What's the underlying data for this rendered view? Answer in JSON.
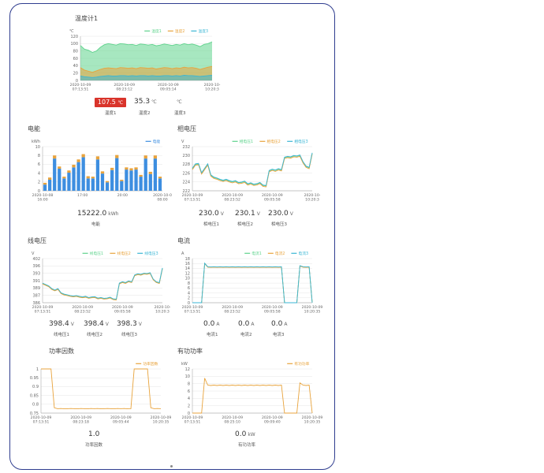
{
  "temperature": {
    "title": "温度计1",
    "unit": "℃",
    "legend": [
      "温度1",
      "温度2",
      "温度3"
    ],
    "readings": [
      {
        "value": "107.5",
        "unit": "℃",
        "label": "温度1",
        "alarm": true
      },
      {
        "value": "35.3",
        "unit": "℃",
        "label": "温度2"
      },
      {
        "value": "",
        "unit": "℃",
        "label": "温度3"
      }
    ]
  },
  "energy": {
    "title": "电能",
    "unit": "kWh",
    "legend": [
      "电能"
    ],
    "reading": {
      "value": "15222.0",
      "unit": "kWh",
      "label": "电能"
    }
  },
  "phase_voltage": {
    "title": "相电压",
    "unit": "V",
    "legend": [
      "相电压1",
      "相电压2",
      "相电压3"
    ],
    "readings": [
      {
        "value": "230.0",
        "unit": "V",
        "label": "相电压1"
      },
      {
        "value": "230.1",
        "unit": "V",
        "label": "相电压2"
      },
      {
        "value": "230.0",
        "unit": "V",
        "label": "相电压3"
      }
    ]
  },
  "line_voltage": {
    "title": "线电压",
    "unit": "V",
    "legend": [
      "线电压1",
      "线电压2",
      "线电压3"
    ],
    "readings": [
      {
        "value": "398.4",
        "unit": "V",
        "label": "线电压1"
      },
      {
        "value": "398.4",
        "unit": "V",
        "label": "线电压2"
      },
      {
        "value": "398.3",
        "unit": "V",
        "label": "线电压3"
      }
    ]
  },
  "current": {
    "title": "电流",
    "unit": "A",
    "legend": [
      "电流1",
      "电流2",
      "电流3"
    ],
    "readings": [
      {
        "value": "0.0",
        "unit": "A",
        "label": "电流1"
      },
      {
        "value": "0.0",
        "unit": "A",
        "label": "电流2"
      },
      {
        "value": "0.0",
        "unit": "A",
        "label": "电流3"
      }
    ]
  },
  "power_factor": {
    "title": "功率因数",
    "unit": "",
    "legend": [
      "功率因数"
    ],
    "reading": {
      "value": "1.0",
      "unit": "",
      "label": "功率因数"
    }
  },
  "active_power": {
    "title": "有功功率",
    "unit": "kW",
    "legend": [
      "有功功率"
    ],
    "reading": {
      "value": "0.0",
      "unit": "kW",
      "label": "有功功率"
    }
  },
  "colors": {
    "green": "#5fd38d",
    "orange": "#e8a33c",
    "cyan": "#3ab6d4",
    "blue": "#3d8ee0",
    "alarm": "#d9342b"
  },
  "chart_data": [
    {
      "type": "area",
      "id": "temperature",
      "title": "温度计1",
      "ylabel": "℃",
      "ylim": [
        0,
        120
      ],
      "yticks": [
        "0",
        "20",
        "40",
        "60",
        "80",
        "100",
        "120"
      ],
      "xticks": [
        "2020-10-09\n07:13:51",
        "2020-10-09\n08:23:12",
        "2020-10-09\n09:05:14",
        "2020-10-\n10:20:3"
      ],
      "legend_position": "top-right",
      "series": [
        {
          "name": "温度1",
          "color": "#5fd38d",
          "values": [
            95,
            85,
            82,
            76,
            80,
            90,
            97,
            100,
            98,
            96,
            100,
            99,
            97,
            98,
            95,
            99,
            98,
            96,
            98,
            94,
            96,
            99,
            97,
            95,
            98,
            96,
            100,
            97,
            99,
            96,
            92,
            98,
            100,
            105
          ]
        },
        {
          "name": "温度2",
          "color": "#e8a33c",
          "values": [
            35,
            28,
            25,
            22,
            26,
            30,
            33,
            34,
            33,
            32,
            35,
            34,
            33,
            34,
            32,
            35,
            34,
            33,
            34,
            31,
            33,
            35,
            34,
            32,
            34,
            33,
            36,
            34,
            35,
            33,
            30,
            33,
            36,
            38
          ]
        },
        {
          "name": "温度3",
          "color": "#3ab6d4",
          "values": [
            12,
            10,
            9,
            8,
            9,
            11,
            12,
            13,
            12,
            12,
            13,
            13,
            12,
            13,
            12,
            13,
            13,
            12,
            13,
            12,
            12,
            13,
            13,
            12,
            13,
            12,
            14,
            13,
            13,
            12,
            11,
            12,
            13,
            14
          ]
        }
      ]
    },
    {
      "type": "bar",
      "id": "energy",
      "title": "电能",
      "ylabel": "kWh",
      "ylim": [
        0,
        10
      ],
      "yticks": [
        "0",
        "2",
        "4",
        "6",
        "8",
        "10"
      ],
      "xticks": [
        "2020-10-08\n16:00",
        "17:00",
        "20:00",
        "2020-10-0\n08:00"
      ],
      "legend_position": "top-right",
      "series": [
        {
          "name": "电能",
          "color": "#3d8ee0",
          "values": [
            1.4,
            2.5,
            7.3,
            5.0,
            2.8,
            4.1,
            5.3,
            6.5,
            7.6,
            2.8,
            2.8,
            7.1,
            3.9,
            1.9,
            4.7,
            7.4,
            2.2,
            4.8,
            4.6,
            4.8,
            3.2,
            7.3,
            3.8,
            7.3,
            2.8
          ]
        },
        {
          "name": "",
          "color": "#e8a33c",
          "values": [
            0.4,
            0.5,
            0.7,
            0.5,
            0.4,
            0.5,
            0.6,
            0.6,
            0.7,
            0.5,
            0.4,
            0.7,
            0.5,
            0.3,
            0.5,
            0.7,
            0.3,
            0.5,
            0.5,
            0.5,
            0.4,
            0.7,
            0.5,
            0.7,
            0.4
          ]
        }
      ]
    },
    {
      "type": "line",
      "id": "phase_voltage",
      "title": "相电压",
      "ylabel": "V",
      "ylim": [
        222,
        232
      ],
      "yticks": [
        "222",
        "224",
        "226",
        "228",
        "230",
        "232"
      ],
      "xticks": [
        "2020-10-09\n07:13:51",
        "2020-10-09\n08:23:52",
        "2020-10-09\n09:05:58",
        "2020-10-\n10:20:3"
      ],
      "legend_position": "top-right",
      "series": [
        {
          "name": "相电压1",
          "color": "#5fd38d",
          "values": [
            227,
            228,
            228,
            226,
            227,
            228,
            225.5,
            225,
            224.8,
            224.5,
            224.3,
            224.5,
            224.2,
            224,
            224.2,
            223.8,
            223.9,
            224.1,
            223.5,
            223.7,
            223.4,
            223.5,
            223.8,
            223.2,
            223.1,
            226.5,
            226.8,
            226.6,
            226.9,
            226.7,
            229.5,
            229.7,
            229.6,
            229.9,
            229.8,
            230,
            228.5,
            227.5,
            227.2,
            230.5
          ]
        },
        {
          "name": "相电压2",
          "color": "#e8a33c",
          "values": [
            226.8,
            227.8,
            227.9,
            225.8,
            226.8,
            227.8,
            225.3,
            224.8,
            224.6,
            224.3,
            224.1,
            224.3,
            224,
            223.8,
            224,
            223.6,
            223.7,
            223.9,
            223.3,
            223.5,
            223.2,
            223.3,
            223.6,
            223,
            222.9,
            226.3,
            226.6,
            226.4,
            226.7,
            226.5,
            229.3,
            229.5,
            229.4,
            229.7,
            229.6,
            229.8,
            228.3,
            227.3,
            227,
            230.3
          ]
        },
        {
          "name": "相电压3",
          "color": "#3ab6d4",
          "values": [
            227.1,
            228.1,
            228.2,
            226.1,
            227.1,
            228.1,
            225.6,
            225.1,
            224.9,
            224.6,
            224.4,
            224.6,
            224.3,
            224.1,
            224.3,
            223.9,
            224,
            224.2,
            223.6,
            223.8,
            223.5,
            223.6,
            223.9,
            223.3,
            223.2,
            226.6,
            226.9,
            226.7,
            227,
            226.8,
            229.6,
            229.8,
            229.7,
            230,
            229.9,
            230.1,
            228.6,
            227.6,
            227.3,
            230.6
          ]
        }
      ]
    },
    {
      "type": "line",
      "id": "line_voltage",
      "title": "线电压",
      "ylabel": "V",
      "ylim": [
        386,
        402
      ],
      "yticks": [
        "386",
        "387",
        "389",
        "391",
        "393",
        "396",
        "402"
      ],
      "xticks": [
        "2020-10-09\n07:13:51",
        "2020-10-09\n08:23:52",
        "2020-10-09\n09:05:58",
        "2020-10-\n10:20:3"
      ],
      "legend_position": "top-right",
      "series": [
        {
          "name": "线电压1",
          "color": "#5fd38d",
          "values": [
            393,
            392.5,
            392,
            391,
            390.5,
            391,
            389.5,
            389,
            388.8,
            388.5,
            388.3,
            388.5,
            388.2,
            388,
            388.2,
            387.8,
            388,
            388.1,
            387.6,
            387.8,
            387.5,
            387.6,
            387.9,
            387.3,
            387.2,
            393,
            393.5,
            393.2,
            393.8,
            393.5,
            396,
            396.4,
            396.2,
            396.6,
            396.5,
            396.8,
            394.5,
            393.5,
            393.2,
            398.5
          ]
        },
        {
          "name": "线电压2",
          "color": "#e8a33c",
          "values": [
            392.8,
            392.3,
            391.8,
            390.8,
            390.3,
            390.8,
            389.3,
            388.8,
            388.6,
            388.3,
            388.1,
            388.3,
            388,
            387.8,
            388,
            387.6,
            387.8,
            387.9,
            387.4,
            387.6,
            387.3,
            387.4,
            387.7,
            387.1,
            387,
            392.8,
            393.3,
            393,
            393.6,
            393.3,
            395.8,
            396.2,
            396,
            396.4,
            396.3,
            396.6,
            394.3,
            393.3,
            393,
            398.3
          ]
        },
        {
          "name": "线电压3",
          "color": "#3ab6d4",
          "values": [
            393.1,
            392.6,
            392.1,
            391.1,
            390.6,
            391.1,
            389.6,
            389.1,
            388.9,
            388.6,
            388.4,
            388.6,
            388.3,
            388.1,
            388.3,
            387.9,
            388.1,
            388.2,
            387.7,
            387.9,
            387.6,
            387.7,
            388,
            387.4,
            387.3,
            393.1,
            393.6,
            393.3,
            393.9,
            393.6,
            396.1,
            396.5,
            396.3,
            396.7,
            396.6,
            396.9,
            394.6,
            393.6,
            393.3,
            398.6
          ]
        }
      ]
    },
    {
      "type": "line",
      "id": "current",
      "title": "电流",
      "ylabel": "A",
      "ylim": [
        0,
        18
      ],
      "yticks": [
        "0",
        "2",
        "4",
        "6",
        "8",
        "10",
        "12",
        "14",
        "16",
        "18"
      ],
      "xticks": [
        "2020-10-09\n07:13:51",
        "2020-10-09\n08:23:52",
        "2020-10-09\n09:05:58",
        "2020-10-09\n10:20:35"
      ],
      "legend_position": "top-right",
      "series": [
        {
          "name": "电流1",
          "color": "#5fd38d",
          "values": [
            0,
            0,
            0,
            0,
            16,
            14.6,
            14.5,
            14.6,
            14.5,
            14.6,
            14.5,
            14.6,
            14.5,
            14.6,
            14.5,
            14.6,
            14.5,
            14.6,
            14.5,
            14.6,
            14.5,
            14.6,
            14.5,
            14.6,
            14.5,
            14.6,
            14.5,
            14.6,
            14.5,
            14.6,
            0,
            0,
            0,
            0,
            0,
            15,
            14.6,
            14.5,
            14.6,
            0
          ]
        },
        {
          "name": "电流2",
          "color": "#e8a33c",
          "values": [
            0,
            0,
            0,
            0,
            15.9,
            14.5,
            14.4,
            14.5,
            14.4,
            14.5,
            14.4,
            14.5,
            14.4,
            14.5,
            14.4,
            14.5,
            14.4,
            14.5,
            14.4,
            14.5,
            14.4,
            14.5,
            14.4,
            14.5,
            14.4,
            14.5,
            14.4,
            14.5,
            14.4,
            14.5,
            0,
            0,
            0,
            0,
            0,
            14.9,
            14.5,
            14.4,
            14.5,
            0
          ]
        },
        {
          "name": "电流3",
          "color": "#3ab6d4",
          "values": [
            0,
            0,
            0,
            0,
            16.1,
            14.7,
            14.6,
            14.7,
            14.6,
            14.7,
            14.6,
            14.7,
            14.6,
            14.7,
            14.6,
            14.7,
            14.6,
            14.7,
            14.6,
            14.7,
            14.6,
            14.7,
            14.6,
            14.7,
            14.6,
            14.7,
            14.6,
            14.7,
            14.6,
            14.7,
            0,
            0,
            0,
            0,
            0,
            15.1,
            14.7,
            14.6,
            14.7,
            0
          ]
        }
      ]
    },
    {
      "type": "line",
      "id": "power_factor",
      "title": "功率因数",
      "ylabel": "",
      "ylim": [
        0.75,
        1
      ],
      "yticks": [
        "0.75",
        "0.8",
        "0.85",
        "0.9",
        "0.95",
        "1"
      ],
      "xticks": [
        "2020-10-09\n07:13:51",
        "2020-10-09\n08:23:18",
        "2020-10-09\n09:05:44",
        "2020-10-09\n10:20:35"
      ],
      "legend_position": "top-right",
      "series": [
        {
          "name": "功率因数",
          "color": "#e8a33c",
          "values": [
            1,
            1,
            1,
            1,
            0.78,
            0.775,
            0.776,
            0.774,
            0.775,
            0.776,
            0.775,
            0.774,
            0.776,
            0.775,
            0.774,
            0.776,
            0.775,
            0.776,
            0.774,
            0.775,
            0.776,
            0.775,
            0.774,
            0.776,
            0.775,
            0.776,
            0.774,
            0.775,
            1,
            1,
            1,
            1,
            1,
            0.78,
            0.775,
            0.776,
            0.775
          ]
        }
      ]
    },
    {
      "type": "line",
      "id": "active_power",
      "title": "有功功率",
      "ylabel": "kW",
      "ylim": [
        0,
        12
      ],
      "yticks": [
        "0",
        "2",
        "4",
        "6",
        "8",
        "10",
        "12"
      ],
      "xticks": [
        "2020-10-09\n07:13:51",
        "2020-10-09\n08:25:10",
        "2020-10-09\n09:09:40",
        "2020-10-09\n10:20:35"
      ],
      "legend_position": "top-right",
      "series": [
        {
          "name": "有功功率",
          "color": "#e8a33c",
          "values": [
            0,
            0,
            0,
            0,
            9.5,
            7.6,
            7.5,
            7.6,
            7.5,
            7.6,
            7.5,
            7.6,
            7.5,
            7.6,
            7.5,
            7.6,
            7.5,
            7.6,
            7.5,
            7.6,
            7.5,
            7.6,
            7.5,
            7.6,
            7.5,
            7.6,
            7.5,
            7.6,
            7.5,
            7.6,
            0,
            0,
            0,
            0,
            0,
            8.2,
            7.6,
            7.5,
            7.6,
            0
          ]
        }
      ]
    }
  ]
}
